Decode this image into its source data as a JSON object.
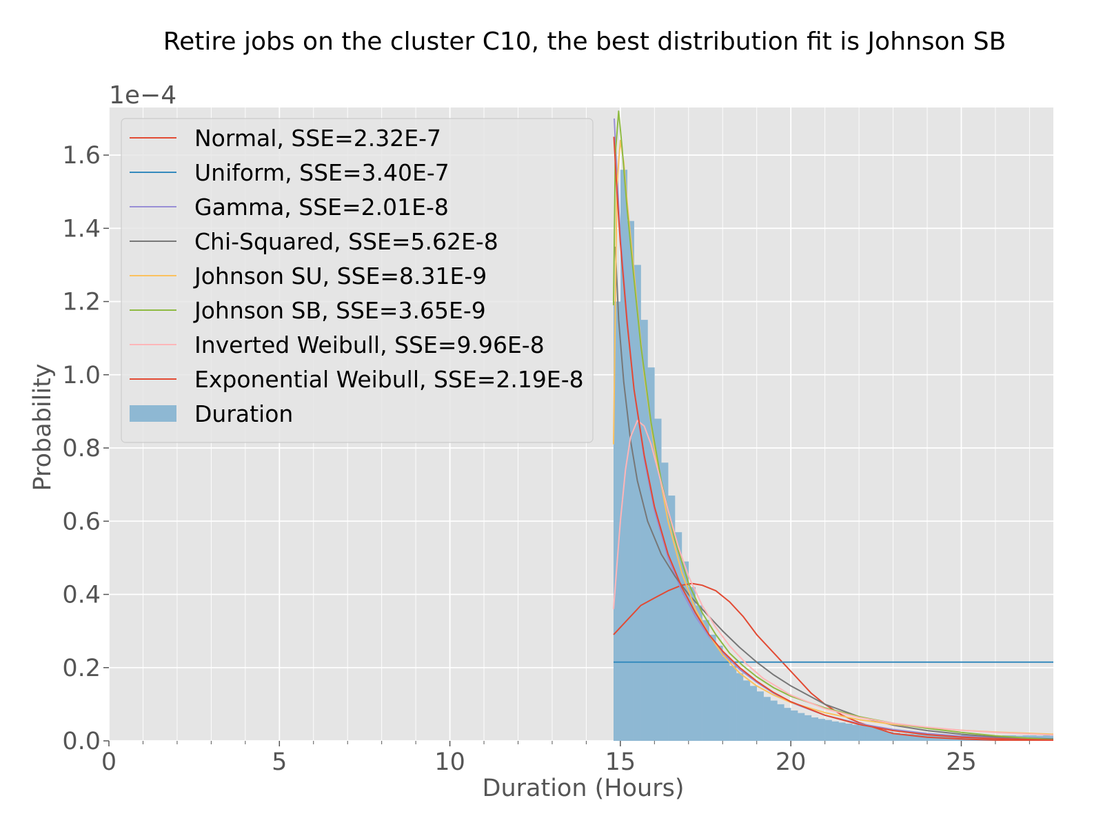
{
  "chart_data": {
    "type": "histogram+line",
    "title": "Retire jobs on the cluster C10, the best distribution fit is Johnson SB",
    "xlabel": "Duration (Hours)",
    "ylabel": "Probability",
    "offset_label": "1e−4",
    "xlim": [
      0,
      27.7
    ],
    "ylim": [
      0,
      1.73
    ],
    "x_ticks": [
      0,
      5,
      10,
      15,
      20,
      25
    ],
    "x_tick_labels": [
      "0",
      "5",
      "10",
      "15",
      "20",
      "25"
    ],
    "y_ticks": [
      0,
      0.2,
      0.4,
      0.6,
      0.8,
      1.0,
      1.2,
      1.4,
      1.6
    ],
    "y_tick_labels": [
      "0.0",
      "0.2",
      "0.4",
      "0.6",
      "0.8",
      "1.0",
      "1.2",
      "1.4",
      "1.6"
    ],
    "grid": true,
    "legend_position": "upper-left",
    "histogram": {
      "name": "Duration",
      "color": "#8eb8d3",
      "bins": [
        [
          14.8,
          1.2
        ],
        [
          15.0,
          1.56
        ],
        [
          15.2,
          1.42
        ],
        [
          15.4,
          1.3
        ],
        [
          15.6,
          1.15
        ],
        [
          15.8,
          1.02
        ],
        [
          16.0,
          0.88
        ],
        [
          16.2,
          0.76
        ],
        [
          16.4,
          0.67
        ],
        [
          16.6,
          0.57
        ],
        [
          16.8,
          0.49
        ],
        [
          17.0,
          0.42
        ],
        [
          17.2,
          0.37
        ],
        [
          17.4,
          0.33
        ],
        [
          17.6,
          0.29
        ],
        [
          17.8,
          0.26
        ],
        [
          18.0,
          0.23
        ],
        [
          18.2,
          0.205
        ],
        [
          18.4,
          0.185
        ],
        [
          18.6,
          0.165
        ],
        [
          18.8,
          0.15
        ],
        [
          19.0,
          0.135
        ],
        [
          19.2,
          0.12
        ],
        [
          19.4,
          0.11
        ],
        [
          19.6,
          0.1
        ],
        [
          19.8,
          0.09
        ],
        [
          20.0,
          0.083
        ],
        [
          20.2,
          0.076
        ],
        [
          20.4,
          0.07
        ],
        [
          20.6,
          0.064
        ],
        [
          20.8,
          0.06
        ],
        [
          21.0,
          0.057
        ],
        [
          21.2,
          0.053
        ],
        [
          21.4,
          0.05
        ],
        [
          21.6,
          0.047
        ],
        [
          21.8,
          0.044
        ],
        [
          22.0,
          0.042
        ],
        [
          22.2,
          0.04
        ],
        [
          22.4,
          0.036
        ],
        [
          22.6,
          0.03
        ],
        [
          22.8,
          0.025
        ],
        [
          23.0,
          0.022
        ],
        [
          23.2,
          0.02
        ],
        [
          23.4,
          0.019
        ],
        [
          23.6,
          0.018
        ],
        [
          23.8,
          0.017
        ],
        [
          24.0,
          0.017
        ],
        [
          24.2,
          0.016
        ],
        [
          24.4,
          0.016
        ],
        [
          24.6,
          0.015
        ],
        [
          24.8,
          0.015
        ],
        [
          25.0,
          0.016
        ],
        [
          25.2,
          0.016
        ],
        [
          25.4,
          0.015
        ],
        [
          25.6,
          0.015
        ],
        [
          25.8,
          0.015
        ],
        [
          26.0,
          0.014
        ],
        [
          26.2,
          0.015
        ],
        [
          26.4,
          0.015
        ],
        [
          26.6,
          0.014
        ],
        [
          26.8,
          0.015
        ],
        [
          27.0,
          0.015
        ],
        [
          27.2,
          0.014
        ],
        [
          27.4,
          0.015
        ],
        [
          27.6,
          0.014
        ]
      ],
      "bin_width": 0.2
    },
    "series": [
      {
        "name": "Normal",
        "sse": "2.32E-7",
        "label": "Normal, SSE=2.32E-7",
        "color": "#e24a33",
        "x": [
          14.8,
          15.2,
          15.6,
          16.0,
          16.4,
          16.8,
          17.1,
          17.4,
          17.8,
          18.2,
          18.6,
          19.0,
          19.4,
          19.8,
          20.2,
          20.6,
          21.0,
          21.5,
          22.0,
          22.5,
          23.0,
          24.0,
          25.0,
          26.0,
          27.7
        ],
        "y": [
          0.29,
          0.33,
          0.37,
          0.39,
          0.41,
          0.425,
          0.43,
          0.425,
          0.41,
          0.38,
          0.34,
          0.29,
          0.25,
          0.21,
          0.17,
          0.13,
          0.1,
          0.07,
          0.05,
          0.035,
          0.02,
          0.01,
          0.005,
          0.002,
          0.0
        ]
      },
      {
        "name": "Uniform",
        "sse": "3.40E-7",
        "label": "Uniform, SSE=3.40E-7",
        "color": "#348abd",
        "x": [
          14.8,
          27.7
        ],
        "y": [
          0.215,
          0.215
        ]
      },
      {
        "name": "Gamma",
        "sse": "2.01E-8",
        "label": "Gamma, SSE=2.01E-8",
        "color": "#988ed5",
        "x": [
          14.82,
          14.9,
          15.0,
          15.2,
          15.4,
          15.7,
          16.0,
          16.4,
          16.8,
          17.2,
          17.6,
          18.0,
          18.5,
          19.0,
          19.5,
          20.0,
          21.0,
          22.0,
          23.0,
          24.0,
          25.0,
          26.0,
          27.7
        ],
        "y": [
          1.7,
          1.55,
          1.38,
          1.15,
          0.96,
          0.77,
          0.63,
          0.5,
          0.41,
          0.34,
          0.285,
          0.24,
          0.195,
          0.16,
          0.13,
          0.105,
          0.07,
          0.047,
          0.031,
          0.02,
          0.013,
          0.008,
          0.004
        ]
      },
      {
        "name": "Chi-Squared",
        "sse": "5.62E-8",
        "label": "Chi-Squared, SSE=5.62E-8",
        "color": "#777777",
        "x": [
          14.85,
          14.95,
          15.1,
          15.3,
          15.5,
          15.8,
          16.2,
          16.6,
          17.0,
          17.5,
          18.0,
          18.5,
          19.0,
          19.5,
          20.0,
          21.0,
          22.0,
          23.0,
          24.0,
          25.0,
          26.0,
          27.7
        ],
        "y": [
          1.35,
          1.15,
          0.98,
          0.82,
          0.71,
          0.6,
          0.51,
          0.45,
          0.4,
          0.35,
          0.3,
          0.255,
          0.215,
          0.18,
          0.15,
          0.1,
          0.066,
          0.043,
          0.028,
          0.018,
          0.011,
          0.005
        ]
      },
      {
        "name": "Johnson SU",
        "sse": "8.31E-9",
        "label": "Johnson SU, SSE=8.31E-9",
        "color": "#fbc15e",
        "x": [
          14.8,
          14.9,
          15.0,
          15.1,
          15.2,
          15.35,
          15.5,
          15.7,
          16.0,
          16.4,
          16.8,
          17.2,
          17.6,
          18.0,
          18.5,
          19.0,
          19.5,
          20.0,
          21.0,
          22.0,
          23.0,
          24.0,
          25.0,
          26.0,
          27.7
        ],
        "y": [
          0.81,
          1.52,
          1.64,
          1.58,
          1.47,
          1.33,
          1.18,
          1.0,
          0.8,
          0.6,
          0.46,
          0.36,
          0.29,
          0.235,
          0.185,
          0.15,
          0.125,
          0.105,
          0.077,
          0.058,
          0.045,
          0.036,
          0.029,
          0.024,
          0.018
        ]
      },
      {
        "name": "Johnson SB",
        "sse": "3.65E-9",
        "label": "Johnson SB, SSE=3.65E-9",
        "color": "#8eba42",
        "x": [
          14.8,
          14.85,
          14.95,
          15.05,
          15.2,
          15.4,
          15.6,
          15.9,
          16.2,
          16.6,
          17.0,
          17.4,
          17.8,
          18.2,
          18.6,
          19.0,
          19.5,
          20.0,
          21.0,
          22.0,
          23.0,
          24.0,
          25.0,
          26.0,
          27.0,
          27.7
        ],
        "y": [
          1.19,
          1.6,
          1.72,
          1.62,
          1.45,
          1.26,
          1.08,
          0.87,
          0.71,
          0.55,
          0.43,
          0.35,
          0.29,
          0.24,
          0.205,
          0.175,
          0.145,
          0.122,
          0.09,
          0.066,
          0.048,
          0.034,
          0.023,
          0.014,
          0.007,
          0.003
        ]
      },
      {
        "name": "Inverted Weibull",
        "sse": "9.96E-8",
        "label": "Inverted Weibull, SSE=9.96E-8",
        "color": "#ffb5b8",
        "x": [
          14.8,
          14.9,
          15.0,
          15.15,
          15.3,
          15.5,
          15.7,
          15.9,
          16.1,
          16.4,
          16.7,
          17.0,
          17.4,
          17.8,
          18.2,
          18.7,
          19.2,
          20.0,
          21.0,
          22.0,
          23.0,
          24.0,
          25.0,
          26.0,
          27.7
        ],
        "y": [
          0.36,
          0.48,
          0.6,
          0.74,
          0.83,
          0.875,
          0.86,
          0.81,
          0.74,
          0.63,
          0.53,
          0.45,
          0.37,
          0.31,
          0.26,
          0.21,
          0.17,
          0.125,
          0.088,
          0.064,
          0.048,
          0.037,
          0.029,
          0.023,
          0.016
        ]
      },
      {
        "name": "Exponential Weibull",
        "sse": "2.19E-8",
        "label": "Exponential Weibull, SSE=2.19E-8",
        "color": "#e24a33",
        "x": [
          14.81,
          14.9,
          15.0,
          15.2,
          15.4,
          15.7,
          16.0,
          16.4,
          16.8,
          17.2,
          17.6,
          18.0,
          18.5,
          19.0,
          19.5,
          20.0,
          21.0,
          22.0,
          23.0,
          24.0,
          25.0,
          26.0,
          27.7
        ],
        "y": [
          1.65,
          1.5,
          1.36,
          1.14,
          0.96,
          0.78,
          0.64,
          0.51,
          0.42,
          0.35,
          0.29,
          0.245,
          0.2,
          0.163,
          0.132,
          0.107,
          0.07,
          0.045,
          0.028,
          0.017,
          0.01,
          0.006,
          0.002
        ]
      }
    ],
    "colors": {
      "axes_bg": "#e5e5e5",
      "grid": "#ffffff",
      "tick_text": "#555555",
      "legend_bg": "#e5e5e5",
      "legend_border": "#cccccc"
    }
  }
}
